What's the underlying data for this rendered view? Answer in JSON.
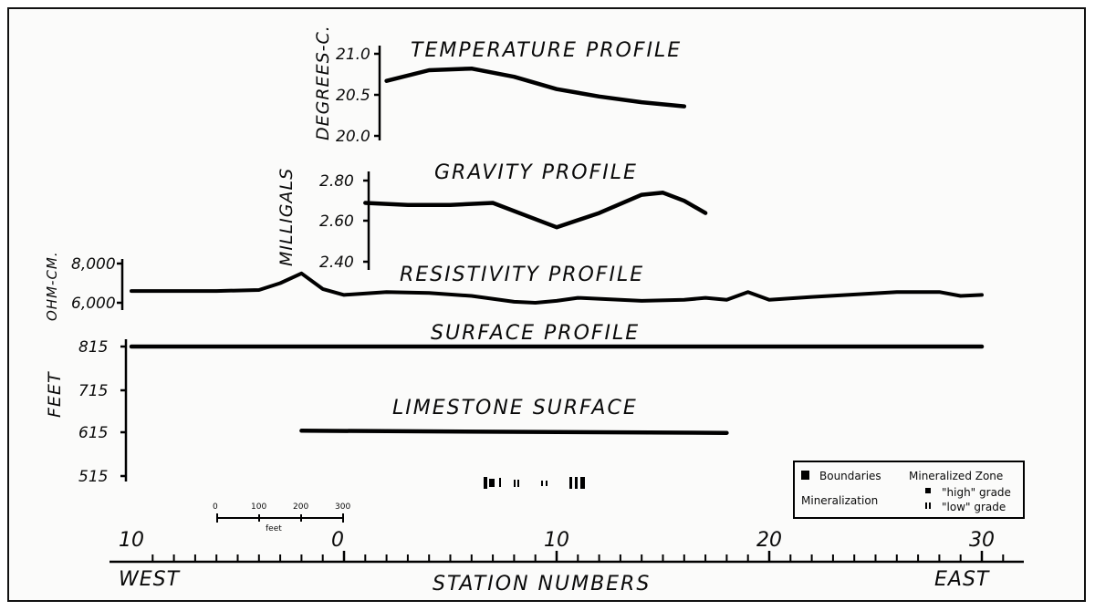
{
  "chart_data": {
    "type": "line",
    "station_axis": {
      "title": "STATION NUMBERS",
      "left_label": "WEST",
      "right_label": "EAST",
      "xlim": [
        -10,
        31
      ],
      "ticks": [
        -10,
        0,
        10,
        20,
        30
      ],
      "tick_labels": [
        "10",
        "0",
        "10",
        "20",
        "30"
      ]
    },
    "profiles": [
      {
        "key": "temperature",
        "title": "TEMPERATURE PROFILE",
        "ylabel": "DEGREES-C.",
        "yticks": [
          "21.0",
          "20.5",
          "20.0"
        ],
        "ylim": [
          20.0,
          21.0
        ],
        "x": [
          2,
          4,
          6,
          8,
          10,
          12,
          14,
          16
        ],
        "y": [
          20.67,
          20.8,
          20.82,
          20.72,
          20.57,
          20.48,
          20.41,
          20.36
        ]
      },
      {
        "key": "gravity",
        "title": "GRAVITY PROFILE",
        "ylabel": "MILLIGALS",
        "yticks": [
          "2.80",
          "2.60",
          "2.40"
        ],
        "ylim": [
          2.4,
          2.8
        ],
        "x": [
          1,
          3,
          5,
          7,
          9,
          10,
          12,
          14,
          15,
          16,
          17
        ],
        "y": [
          2.69,
          2.68,
          2.68,
          2.69,
          2.61,
          2.57,
          2.64,
          2.73,
          2.74,
          2.7,
          2.64
        ]
      },
      {
        "key": "resistivity",
        "title": "RESISTIVITY PROFILE",
        "ylabel": "OHM-CM.",
        "yticks": [
          "8,000",
          "6,000"
        ],
        "ylim": [
          6000,
          8000
        ],
        "x": [
          -10,
          -8,
          -6,
          -4,
          -3,
          -2,
          -1,
          0,
          2,
          4,
          6,
          8,
          9,
          10,
          11,
          14,
          16,
          17,
          18,
          19,
          20,
          22,
          26,
          28,
          29,
          30
        ],
        "y": [
          6600,
          6600,
          6600,
          6650,
          7000,
          7500,
          6700,
          6400,
          6550,
          6500,
          6350,
          6050,
          6000,
          6100,
          6250,
          6100,
          6150,
          6250,
          6150,
          6550,
          6150,
          6300,
          6550,
          6550,
          6350,
          6400
        ]
      },
      {
        "key": "surface",
        "title": "SURFACE PROFILE",
        "ylabel": "FEET",
        "yticks": [
          "815",
          "715",
          "615",
          "515"
        ],
        "ylim": [
          515,
          815
        ],
        "x": [
          -10,
          30
        ],
        "y": [
          815,
          815
        ]
      },
      {
        "key": "limestone",
        "title": "LIMESTONE SURFACE",
        "ylabel": "FEET",
        "ylim": [
          515,
          815
        ],
        "x": [
          -2,
          18
        ],
        "y": [
          620,
          615
        ]
      }
    ],
    "scale_bar": {
      "labels": [
        "0",
        "100",
        "200",
        "300"
      ],
      "unit": "feet"
    },
    "legend": {
      "title_left": "Boundaries",
      "title_right": "Mineralized Zone",
      "row_label": "Mineralization",
      "high": "\"high\" grade",
      "low": "\"low\" grade"
    }
  }
}
